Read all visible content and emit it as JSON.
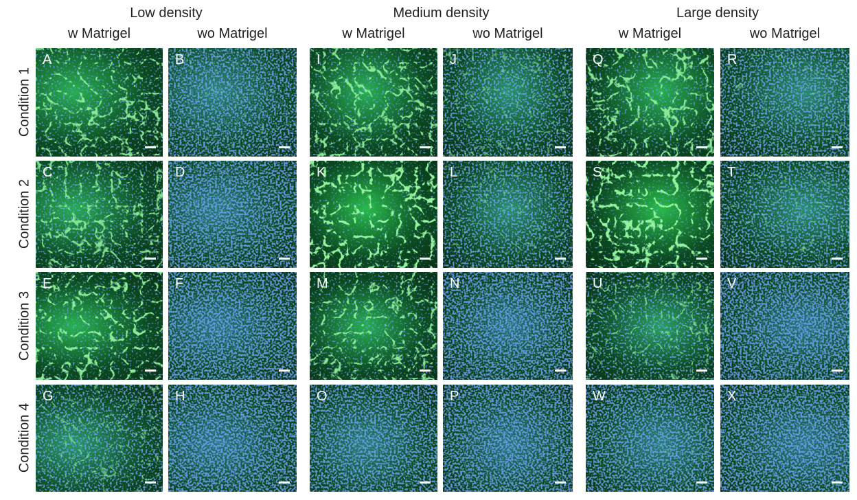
{
  "groups": [
    {
      "title": "Low density",
      "columns": [
        "w Matrigel",
        "wo Matrigel"
      ]
    },
    {
      "title": "Medium density",
      "columns": [
        "w Matrigel",
        "wo Matrigel"
      ]
    },
    {
      "title": "Large density",
      "columns": [
        "w Matrigel",
        "wo Matrigel"
      ]
    }
  ],
  "rows": [
    "Condition 1",
    "Condition 2",
    "Condition 3",
    "Condition 4"
  ],
  "panels": [
    [
      "A",
      "B",
      "I",
      "J",
      "Q",
      "R"
    ],
    [
      "C",
      "D",
      "K",
      "L",
      "S",
      "T"
    ],
    [
      "E",
      "F",
      "M",
      "N",
      "U",
      "V"
    ],
    [
      "G",
      "H",
      "O",
      "P",
      "W",
      "X"
    ]
  ],
  "colors": {
    "network_stain": "#39d04a",
    "nuclear_stain": "#2a5ad8",
    "background": "#0a3d18"
  }
}
